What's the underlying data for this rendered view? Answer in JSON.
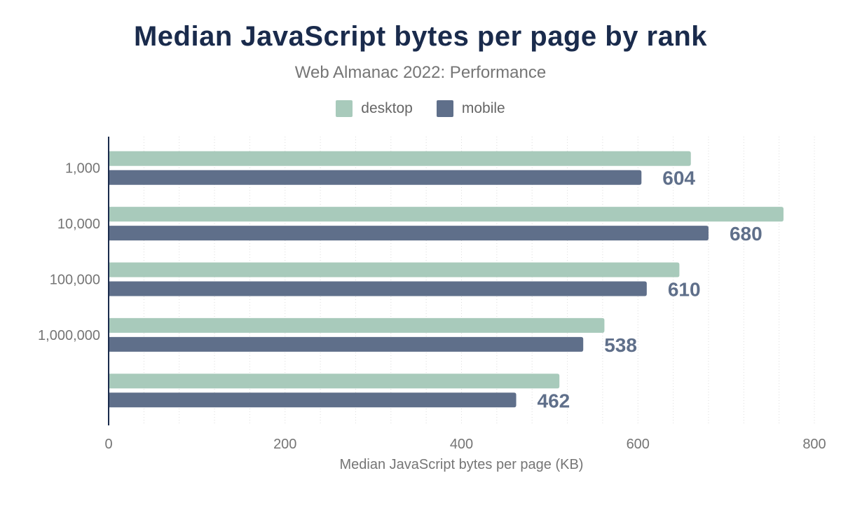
{
  "chart_data": {
    "type": "bar",
    "orientation": "horizontal",
    "title": "Median JavaScript bytes per page by rank",
    "subtitle": "Web Almanac 2022: Performance",
    "xlabel": "Median JavaScript bytes per page (KB)",
    "ylabel": "",
    "xlim": [
      0,
      800
    ],
    "xticks": [
      "0",
      "200",
      "400",
      "600",
      "800"
    ],
    "categories": [
      "1,000",
      "10,000",
      "100,000",
      "1,000,000",
      ""
    ],
    "series": [
      {
        "name": "desktop",
        "color": "#a8cabb",
        "values": [
          660,
          765,
          647,
          562,
          511
        ]
      },
      {
        "name": "mobile",
        "color": "#5f6f8a",
        "values": [
          604,
          680,
          610,
          538,
          462
        ]
      }
    ],
    "data_labels": [
      "604",
      "680",
      "610",
      "538",
      "462"
    ],
    "label_color": "#5f6f8a",
    "grid": true,
    "legend_position": "top-center"
  }
}
